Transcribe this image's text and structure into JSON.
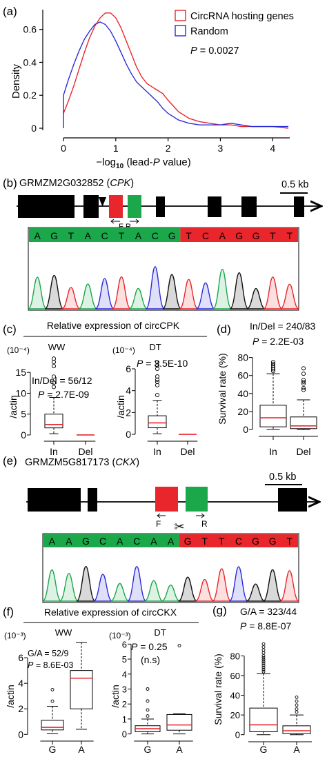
{
  "panel_a": {
    "label": "(a)",
    "ylabel": "Density",
    "xlabel_main": "−log",
    "xlabel_sub": "10",
    "xlabel_rest": " (lead-",
    "xlabel_italic": "P",
    "xlabel_end": " value)",
    "pvalue_label": "P",
    "pvalue_text": " = 0.0027",
    "colors": {
      "circ": "#e8262b",
      "random": "#2b2bd9"
    }
  },
  "panel_b": {
    "label": "(b)",
    "gene_id": "GRMZM2G032852",
    "gene_name": "CPK",
    "scale_label": "0.5 kb",
    "primer_f": "F",
    "primer_r": "R",
    "sequence": [
      "A",
      "G",
      "T",
      "A",
      "C",
      "T",
      "A",
      "C",
      "G",
      "T",
      "C",
      "A",
      "G",
      "G",
      "T",
      "T"
    ],
    "junction_index": 9
  },
  "panel_c": {
    "label": "(c)",
    "header": "Relative expression of circCPK",
    "ww": {
      "title": "WW",
      "exponent": "(10⁻⁴)",
      "ylabel": "/actin",
      "stat1": "In/Del = 56/12",
      "stat2_p": "P",
      "stat2": " = 2.7E-09"
    },
    "dt": {
      "title": "DT",
      "exponent": "(10⁻⁴)",
      "ylabel": "/actin",
      "stat1_p": "P",
      "stat1": " = 3.5E-10"
    },
    "categories": [
      "In",
      "Del"
    ]
  },
  "panel_d": {
    "label": "(d)",
    "stat1": "In/Del = 240/83",
    "stat2_p": "P",
    "stat2": " = 2.2E-03",
    "ylabel": "Survival rate (%)",
    "categories": [
      "In",
      "Del"
    ]
  },
  "panel_e": {
    "label": "(e)",
    "gene_id": "GRMZM5G817173",
    "gene_name": "CKX",
    "scale_label": "0.5 kb",
    "primer_f": "F",
    "primer_r": "R",
    "sequence": [
      "A",
      "A",
      "G",
      "C",
      "A",
      "C",
      "A",
      "A",
      "G",
      "T",
      "T",
      "C",
      "G",
      "G",
      "T"
    ],
    "junction_index": 8
  },
  "panel_f": {
    "label": "(f)",
    "header": "Relative expression of circCKX",
    "ww": {
      "title": "WW",
      "exponent": "(10⁻³)",
      "ylabel": "/actin",
      "stat1": "G/A = 52/9",
      "stat2_p": "P",
      "stat2": " = 8.6E-03"
    },
    "dt": {
      "title": "DT",
      "exponent": "(10⁻³)",
      "ylabel": "/actin",
      "stat1_p": "P",
      "stat1": " = 0.25",
      "stat2": "(n.s)"
    },
    "categories": [
      "G",
      "A"
    ]
  },
  "panel_g": {
    "label": "(g)",
    "stat1": "G/A = 323/44",
    "stat2_p": "P",
    "stat2": " = 8.8E-07",
    "ylabel": "Survival rate (%)",
    "categories": [
      "G",
      "A"
    ]
  },
  "chart_data": [
    {
      "type": "line",
      "panel": "(a)",
      "xlabel": "−log10 (lead-P value)",
      "ylabel": "Density",
      "xlim": [
        -0.1,
        4.4
      ],
      "ylim": [
        -0.02,
        0.73
      ],
      "xticks": [
        0,
        1,
        2,
        3,
        4
      ],
      "yticks": [
        0,
        0.2,
        0.4,
        0.6
      ],
      "legend_position": "top-right",
      "series": [
        {
          "name": "CircRNA hosting genes",
          "color": "#e8262b",
          "x": [
            0,
            0.1,
            0.2,
            0.3,
            0.4,
            0.5,
            0.6,
            0.7,
            0.8,
            0.9,
            1.0,
            1.1,
            1.2,
            1.3,
            1.4,
            1.5,
            1.6,
            1.7,
            1.8,
            1.9,
            2.0,
            2.2,
            2.4,
            2.6,
            2.8,
            3.0,
            3.2,
            3.4,
            3.6,
            3.8,
            4.0,
            4.3
          ],
          "y": [
            0.09,
            0.17,
            0.26,
            0.36,
            0.46,
            0.55,
            0.62,
            0.67,
            0.7,
            0.7,
            0.67,
            0.61,
            0.53,
            0.45,
            0.37,
            0.31,
            0.27,
            0.25,
            0.23,
            0.21,
            0.17,
            0.1,
            0.06,
            0.04,
            0.03,
            0.02,
            0.02,
            0.01,
            0.01,
            0.01,
            0.01,
            0.0
          ]
        },
        {
          "name": "Random",
          "color": "#2b2bd9",
          "x": [
            0,
            0,
            0.1,
            0.2,
            0.3,
            0.4,
            0.5,
            0.6,
            0.7,
            0.8,
            0.9,
            1.0,
            1.1,
            1.2,
            1.3,
            1.4,
            1.5,
            1.6,
            1.7,
            1.8,
            1.9,
            2.0,
            2.2,
            2.4,
            2.6,
            2.8,
            3.0,
            3.2,
            3.4,
            3.6,
            3.8,
            4.0,
            4.3
          ],
          "y": [
            0.0,
            0.2,
            0.3,
            0.39,
            0.47,
            0.54,
            0.59,
            0.63,
            0.645,
            0.63,
            0.59,
            0.53,
            0.46,
            0.39,
            0.33,
            0.28,
            0.25,
            0.22,
            0.19,
            0.16,
            0.12,
            0.09,
            0.05,
            0.03,
            0.02,
            0.02,
            0.02,
            0.03,
            0.02,
            0.01,
            0.01,
            0.01,
            0.01
          ]
        }
      ]
    },
    {
      "type": "boxplot",
      "panel": "(c) WW",
      "ylabel": "/actin",
      "ylim": [
        -0.5,
        19
      ],
      "yticks": [
        0,
        5,
        10,
        15
      ],
      "boxes": [
        {
          "category": "In",
          "whisker_low": 0.3,
          "q1": 1.7,
          "median": 2.5,
          "q3": 5.0,
          "whisker_high": 9.0,
          "outliers": [
            11.5,
            12.5,
            14.0,
            16.5,
            17.5,
            18.3
          ]
        },
        {
          "category": "Del",
          "whisker_low": 0,
          "q1": 0,
          "median": 0,
          "q3": 0,
          "whisker_high": 0,
          "outliers": []
        }
      ]
    },
    {
      "type": "boxplot",
      "panel": "(c) DT",
      "ylabel": "/actin",
      "ylim": [
        -0.25,
        7.2
      ],
      "yticks": [
        0,
        2,
        4,
        6
      ],
      "boxes": [
        {
          "category": "In",
          "whisker_low": 0.05,
          "q1": 0.6,
          "median": 1.05,
          "q3": 1.7,
          "whisker_high": 3.1,
          "outliers": [
            3.6,
            4.5,
            4.8,
            5.0,
            5.3,
            6.0,
            6.3,
            6.6
          ]
        },
        {
          "category": "Del",
          "whisker_low": 0,
          "q1": 0,
          "median": 0,
          "q3": 0,
          "whisker_high": 0,
          "outliers": []
        }
      ]
    },
    {
      "type": "boxplot",
      "panel": "(d)",
      "ylabel": "Survival rate (%)",
      "ylim": [
        -3,
        82
      ],
      "yticks": [
        0,
        20,
        40,
        60,
        80
      ],
      "boxes": [
        {
          "category": "In",
          "whisker_low": 0,
          "q1": 3,
          "median": 13,
          "q3": 27,
          "whisker_high": 62,
          "outliers": [
            65,
            67,
            69,
            71,
            73,
            75
          ]
        },
        {
          "category": "Del",
          "whisker_low": 0,
          "q1": 1,
          "median": 4,
          "q3": 14,
          "whisker_high": 33,
          "outliers": [
            44,
            46,
            51,
            53,
            55,
            62,
            68
          ]
        }
      ]
    },
    {
      "type": "boxplot",
      "panel": "(f) WW",
      "ylabel": "/actin",
      "ylim": [
        -0.2,
        7.3
      ],
      "yticks": [
        0,
        2,
        4,
        6
      ],
      "boxes": [
        {
          "category": "G",
          "whisker_low": 0.05,
          "q1": 0.35,
          "median": 0.55,
          "q3": 1.1,
          "whisker_high": 2.2,
          "outliers": [
            2.6,
            3.5
          ]
        },
        {
          "category": "A",
          "whisker_low": 0.4,
          "q1": 2.0,
          "median": 4.4,
          "q3": 5.0,
          "whisker_high": 7.2,
          "outliers": []
        }
      ]
    },
    {
      "type": "boxplot",
      "panel": "(f) DT",
      "ylabel": "/actin",
      "ylim": [
        -0.2,
        6.2
      ],
      "yticks": [
        0,
        1,
        2,
        3,
        4,
        5,
        6
      ],
      "boxes": [
        {
          "category": "G",
          "whisker_low": 0.0,
          "q1": 0.15,
          "median": 0.35,
          "q3": 0.55,
          "whisker_high": 1.0,
          "outliers": [
            1.2,
            1.6,
            2.2,
            3.0
          ]
        },
        {
          "category": "A",
          "whisker_low": 0.0,
          "q1": 0.25,
          "median": 0.6,
          "q3": 1.3,
          "whisker_high": 1.35,
          "outliers": [
            5.9
          ]
        }
      ]
    },
    {
      "type": "boxplot",
      "panel": "(g)",
      "ylabel": "Survival rate (%)",
      "ylim": [
        -3,
        95
      ],
      "yticks": [
        0,
        20,
        40,
        60,
        80
      ],
      "boxes": [
        {
          "category": "G",
          "whisker_low": 0,
          "q1": 3,
          "median": 10,
          "q3": 27,
          "whisker_high": 62,
          "outliers": [
            64,
            66,
            68,
            70,
            72,
            74,
            76,
            78,
            80,
            83,
            86,
            89,
            92
          ]
        },
        {
          "category": "A",
          "whisker_low": 0,
          "q1": 1,
          "median": 4,
          "q3": 9,
          "whisker_high": 20,
          "outliers": [
            23,
            26,
            30,
            34,
            38
          ]
        }
      ]
    }
  ]
}
